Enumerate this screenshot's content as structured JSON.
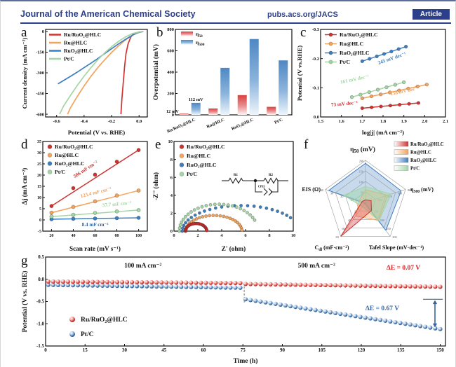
{
  "header": {
    "journal": "Journal of the American Chemical Society",
    "site": "pubs.acs.org/JACS",
    "badge": "Article"
  },
  "colors": {
    "red": "#ce3332",
    "orange": "#f2a35c",
    "blue": "#3d7ebf",
    "green": "#a3d6a4",
    "steel": "#38649f",
    "navy": "#2b3f8c",
    "black": "#1a1a1a",
    "bright_red": "#d42020"
  },
  "chart_data": [
    {
      "letter": "a",
      "type": "line",
      "xlabel": "Potential (V vs. RHE)",
      "ylabel": "Current density (mA cm⁻²)",
      "xlim": [
        -0.68,
        0.06
      ],
      "ylim": [
        -620,
        15
      ],
      "xticks": [
        "-0.6",
        "-0.4",
        "-0.2",
        "0.0"
      ],
      "yticks": [
        "0",
        "-150",
        "-300",
        "-450",
        "-600"
      ],
      "series": [
        {
          "name": "Ru/RuO₂@HLC",
          "color": "red",
          "points": [
            [
              0.03,
              0
            ],
            [
              0.0,
              -3
            ],
            [
              -0.04,
              -15
            ],
            [
              -0.06,
              -40
            ],
            [
              -0.08,
              -90
            ],
            [
              -0.095,
              -160
            ],
            [
              -0.105,
              -250
            ],
            [
              -0.115,
              -370
            ],
            [
              -0.125,
              -490
            ],
            [
              -0.132,
              -600
            ]
          ]
        },
        {
          "name": "Ru@HLC",
          "color": "orange",
          "points": [
            [
              0.03,
              0
            ],
            [
              0.0,
              -6
            ],
            [
              -0.05,
              -28
            ],
            [
              -0.1,
              -62
            ],
            [
              -0.15,
              -105
            ],
            [
              -0.2,
              -152
            ],
            [
              -0.25,
              -205
            ],
            [
              -0.3,
              -262
            ],
            [
              -0.35,
              -325
            ],
            [
              -0.4,
              -395
            ],
            [
              -0.45,
              -472
            ],
            [
              -0.5,
              -555
            ],
            [
              -0.52,
              -600
            ]
          ]
        },
        {
          "name": "RuO₂@HLC",
          "color": "blue",
          "points": [
            [
              0.03,
              0
            ],
            [
              -0.02,
              -12
            ],
            [
              -0.06,
              -34
            ],
            [
              -0.1,
              -58
            ],
            [
              -0.15,
              -90
            ],
            [
              -0.2,
              -125
            ],
            [
              -0.25,
              -160
            ],
            [
              -0.3,
              -196
            ],
            [
              -0.35,
              -230
            ],
            [
              -0.4,
              -262
            ],
            [
              -0.45,
              -295
            ],
            [
              -0.5,
              -326
            ],
            [
              -0.55,
              -356
            ],
            [
              -0.59,
              -380
            ]
          ]
        },
        {
          "name": "Pt/C",
          "color": "green",
          "points": [
            [
              0.03,
              0
            ],
            [
              0.0,
              -4
            ],
            [
              -0.05,
              -16
            ],
            [
              -0.1,
              -40
            ],
            [
              -0.15,
              -72
            ],
            [
              -0.2,
              -110
            ],
            [
              -0.25,
              -155
            ],
            [
              -0.3,
              -205
            ],
            [
              -0.35,
              -262
            ],
            [
              -0.4,
              -324
            ],
            [
              -0.45,
              -392
            ],
            [
              -0.5,
              -465
            ],
            [
              -0.55,
              -542
            ],
            [
              -0.578,
              -600
            ]
          ]
        }
      ]
    },
    {
      "letter": "b",
      "type": "bar",
      "ylabel": "Overpotential (mV)",
      "ylim": [
        0,
        800
      ],
      "yticks": [
        "0",
        "200",
        "400",
        "600",
        "800"
      ],
      "categories": [
        "Ru/RuO₂@HLC",
        "Ru@HLC",
        "RuO₂@HLC",
        "Pt/C"
      ],
      "series": [
        {
          "name": "η_{50}",
          "color": "red",
          "values": [
            12,
            60,
            185,
            75
          ]
        },
        {
          "name": "η_{500}",
          "color": "blue",
          "values": [
            112,
            440,
            710,
            510
          ]
        }
      ],
      "annotations": [
        {
          "text": "12 mV",
          "cat": 0,
          "series": 0
        },
        {
          "text": "112 mV",
          "cat": 0,
          "series": 1
        }
      ]
    },
    {
      "letter": "c",
      "type": "tafel",
      "xlabel": "log|j| (mA cm⁻²)",
      "ylabel": "Potential (V vs.RHE)",
      "xlim": [
        1.5,
        2.1
      ],
      "ylim": [
        0.0,
        -0.3
      ],
      "xticks": [
        "1.5",
        "1.6",
        "1.7",
        "1.8",
        "1.9",
        "2.0",
        "2.1"
      ],
      "yticks": [
        "0.0",
        "-0.1",
        "-0.2",
        "-0.3"
      ],
      "series": [
        {
          "name": "Ru/RuO₂@HLC",
          "color": "red",
          "start": [
            1.7,
            -0.03
          ],
          "end": [
            1.97,
            -0.048
          ],
          "n": 7
        },
        {
          "name": "Ru@HLC",
          "color": "orange",
          "start": [
            1.7,
            -0.064
          ],
          "end": [
            2.01,
            -0.111
          ],
          "n": 8
        },
        {
          "name": "RuO₂@HLC",
          "color": "blue",
          "start": [
            1.7,
            -0.191
          ],
          "end": [
            1.91,
            -0.241
          ],
          "n": 7
        },
        {
          "name": "Pt/C",
          "color": "green",
          "start": [
            1.65,
            -0.068
          ],
          "end": [
            1.9,
            -0.119
          ],
          "n": 7
        }
      ],
      "annotations": [
        {
          "text": "245 mV dec⁻¹",
          "color": "blue",
          "x": 1.845,
          "y": -0.196,
          "rot": -19
        },
        {
          "text": "161 mV dec⁻¹",
          "color": "green",
          "x": 1.665,
          "y": -0.124,
          "rot": -12
        },
        {
          "text": "158 mV dec⁻¹",
          "color": "orange",
          "x": 1.905,
          "y": -0.084,
          "rot": -12
        },
        {
          "text": "73 mV dec⁻¹",
          "color": "red",
          "x": 1.615,
          "y": -0.04,
          "rot": -5
        }
      ]
    },
    {
      "letter": "d",
      "type": "cdl",
      "xlabel": "Scan rate (mV s⁻¹)",
      "ylabel": "Δj (mA cm⁻²)",
      "xlim": [
        12,
        108
      ],
      "ylim": [
        -5,
        35
      ],
      "xticks": [
        "20",
        "40",
        "60",
        "80",
        "100"
      ],
      "yticks": [
        "-5",
        "0",
        "5",
        "10",
        "15",
        "20",
        "25",
        "30",
        "35"
      ],
      "series": [
        {
          "name": "Ru/RuO₂@HLC",
          "color": "red",
          "points": [
            [
              20,
              6.2
            ],
            [
              40,
              14.2
            ],
            [
              60,
              20.2
            ],
            [
              80,
              26.0
            ],
            [
              100,
              31.2
            ]
          ]
        },
        {
          "name": "Ru@HLC",
          "color": "orange",
          "points": [
            [
              20,
              3.2
            ],
            [
              40,
              5.8
            ],
            [
              60,
              8.3
            ],
            [
              80,
              10.9
            ],
            [
              100,
              13.1
            ]
          ]
        },
        {
          "name": "RuO₂@HLC",
          "color": "blue",
          "points": [
            [
              20,
              0.3
            ],
            [
              40,
              0.5
            ],
            [
              60,
              0.65
            ],
            [
              80,
              0.8
            ],
            [
              100,
              0.95
            ]
          ]
        },
        {
          "name": "Pt/C",
          "color": "green",
          "points": [
            [
              20,
              1.5
            ],
            [
              40,
              2.3
            ],
            [
              60,
              3.1
            ],
            [
              80,
              3.8
            ],
            [
              100,
              4.4
            ]
          ]
        }
      ],
      "annotations": [
        {
          "text": "306 mF cm⁻²",
          "color": "red",
          "x": 52,
          "y": 22.0,
          "rot": -33
        },
        {
          "text": "123.4 mF cm⁻²",
          "color": "orange",
          "x": 61,
          "y": 11.6,
          "rot": -14
        },
        {
          "text": "37.7 mF cm⁻²",
          "color": "green",
          "x": 80,
          "y": 6.4,
          "rot": -5
        },
        {
          "text": "8.4 mF cm⁻²",
          "color": "steel",
          "x": 60,
          "y": -2.8,
          "rot": 0
        }
      ]
    },
    {
      "letter": "e",
      "type": "nyquist",
      "xlabel": "Z' (ohm)",
      "ylabel": "-Z'' (ohm)",
      "xlim": [
        0,
        10
      ],
      "ylim": [
        0,
        10
      ],
      "xticks": [
        "0",
        "2",
        "4",
        "6",
        "8",
        "10"
      ],
      "yticks": [
        "0",
        "2",
        "4",
        "6",
        "8",
        "10"
      ],
      "series": [
        {
          "name": "Ru/RuO₂@HLC",
          "color": "red",
          "cx": 1.85,
          "r": 0.9,
          "h": 0.85,
          "end": 0.08
        },
        {
          "name": "Ru@HLC",
          "color": "orange",
          "cx": 3.35,
          "r": 2.35,
          "h": 1.75,
          "end": 0.06
        },
        {
          "name": "RuO₂@HLC",
          "color": "blue",
          "cx": 5.6,
          "r": 4.9,
          "h": 2.85,
          "end": 0.44
        },
        {
          "name": "Pt/C",
          "color": "green",
          "cx": 3.75,
          "r": 3.3,
          "h": 3.0,
          "end": 0.42
        }
      ],
      "circuit": {
        "r1": "R1",
        "r2": "R2",
        "cpe": "CPE1"
      }
    },
    {
      "letter": "f",
      "type": "radar",
      "axes": [
        {
          "label": "η_{50} (mV)",
          "ticks": [
            "50",
            "100",
            "150",
            "200"
          ]
        },
        {
          "label": "η_{500} (mV)",
          "ticks": [
            "200",
            "400",
            "600",
            "800"
          ]
        },
        {
          "label": "Tafel Slope (mV·dec⁻¹)",
          "ticks": [
            "150",
            "200",
            "250",
            "300"
          ]
        },
        {
          "label": "C_{dl} (mF·cm⁻²)",
          "ticks": [
            "20",
            "40",
            "60",
            "80"
          ]
        },
        {
          "label": "EIS (Ω)",
          "ticks": [
            "10",
            "20",
            "30",
            "40"
          ]
        }
      ],
      "series": [
        {
          "name": "Ru/RuO₂@HLC",
          "color": "red",
          "values": [
            0.06,
            0.14,
            0.24,
            1.0,
            0.08
          ]
        },
        {
          "name": "Ru@HLC",
          "color": "orange",
          "values": [
            0.3,
            0.55,
            0.53,
            0.4,
            0.15
          ]
        },
        {
          "name": "RuO₂@HLC",
          "color": "blue",
          "values": [
            0.93,
            0.89,
            0.82,
            0.03,
            0.92
          ]
        },
        {
          "name": "Pt/C",
          "color": "green",
          "values": [
            0.38,
            0.64,
            0.54,
            0.12,
            0.55
          ]
        }
      ]
    },
    {
      "letter": "g",
      "type": "stability",
      "xlabel": "Time (h)",
      "ylabel": "Potential (V vs. RHE)",
      "xlim": [
        0,
        152
      ],
      "ylim": [
        -1.5,
        0.5
      ],
      "xticks": [
        "0",
        "15",
        "30",
        "45",
        "60",
        "75",
        "90",
        "105",
        "120",
        "135",
        "150"
      ],
      "yticks": [
        "0.5",
        "0.0",
        "-0.5",
        "-1.0",
        "-1.5"
      ],
      "series": [
        {
          "name": "Ru/RuO₂@HLC",
          "color": "red",
          "sphere": "sphRed",
          "segments": [
            {
              "x0": 1,
              "x1": 74,
              "y0": -0.05,
              "y1": -0.085,
              "n": 40
            },
            {
              "x0": 76,
              "x1": 150,
              "y0": -0.105,
              "y1": -0.168,
              "n": 40
            }
          ]
        },
        {
          "name": "Pt/C",
          "color": "steel",
          "sphere": "sphBlue",
          "segments": [
            {
              "x0": 1,
              "x1": 74,
              "y0": -0.125,
              "y1": -0.19,
              "n": 40
            },
            {
              "x0": 76,
              "x1": 150,
              "y0": -0.45,
              "y1": -1.12,
              "n": 40
            }
          ]
        }
      ],
      "annotations": [
        {
          "text": "100 mA cm⁻²",
          "color": "black",
          "x": 37,
          "y": 0.26
        },
        {
          "text": "500 mA cm⁻²",
          "color": "black",
          "x": 103,
          "y": 0.26
        },
        {
          "text": "ΔE = 0.07 V",
          "color": "bright_red",
          "x": 136,
          "y": 0.22
        },
        {
          "text": "ΔE = 0.67 V",
          "color": "steel",
          "x": 128,
          "y": -0.7
        }
      ],
      "arrow": {
        "x": 148,
        "y1": -0.47,
        "y2": -1.08,
        "cap": -0.45
      },
      "switch_time": 75.5
    }
  ]
}
